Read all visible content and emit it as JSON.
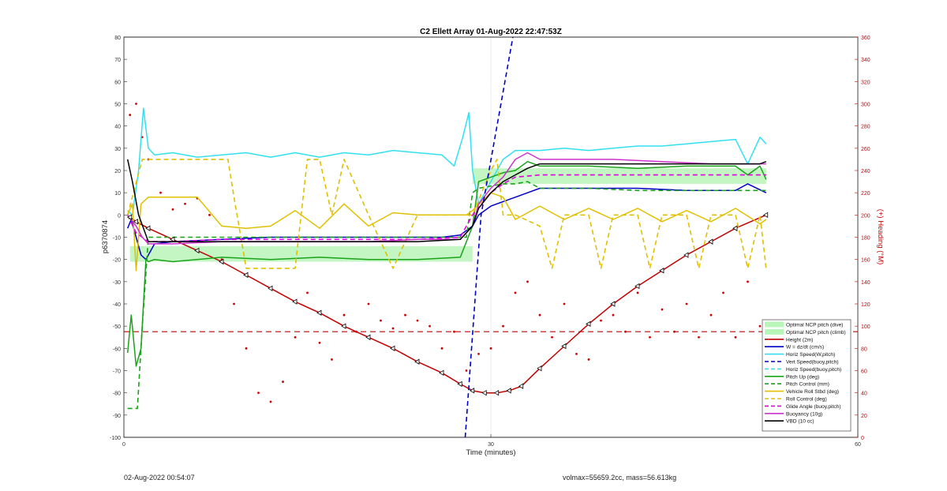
{
  "footer": {
    "timestamp": "02-Aug-2022 00:54:07",
    "volmax": "volmax=55659.2cc, mass=56.613kg"
  },
  "colors": {
    "height": "#c00000",
    "w": "#0000c8",
    "horiz": "#33e0f0",
    "pitch": "#19a319",
    "roll": "#e0c000",
    "glide": "#e000e0",
    "buoyancy": "#cc33cc",
    "vbd": "#000000",
    "band": "#b8f5b8",
    "heading": "#cc0000"
  },
  "chart_data": {
    "type": "line",
    "title": "C2 Ellett Array 01-Aug-2022 22:47:53Z",
    "xlabel": "Time (minutes)",
    "ylabel": "p6370874",
    "y2label": "(+) Heading (°M)",
    "xlim": [
      0,
      60
    ],
    "ylim": [
      -100,
      80
    ],
    "y2lim": [
      0,
      360
    ],
    "xticks": [
      0,
      30,
      60
    ],
    "yticks": [
      -100,
      -90,
      -80,
      -70,
      -60,
      -50,
      -40,
      -30,
      -20,
      -10,
      0,
      10,
      20,
      30,
      40,
      50,
      60,
      70,
      80
    ],
    "y2ticks": [
      0,
      20,
      40,
      60,
      80,
      100,
      120,
      140,
      160,
      180,
      200,
      220,
      240,
      260,
      280,
      300,
      320,
      340,
      360
    ],
    "grid": true,
    "legend_position": "bottom-right",
    "heading_reference": 95,
    "bands": [
      {
        "name": "Optimal NCP pitch (dive)",
        "x": [
          0.5,
          28.5
        ],
        "y": [
          -21,
          -14
        ]
      },
      {
        "name": "Optimal NCP pitch (climb)",
        "x": [
          28.5,
          52.5
        ],
        "y": [
          14,
          21
        ]
      }
    ],
    "series": [
      {
        "name": "Height (2m)",
        "key": "height",
        "style": "solid",
        "markers": true,
        "x": [
          0.5,
          1,
          2,
          4,
          6,
          8,
          10,
          12,
          14,
          16,
          18,
          20,
          22,
          24,
          26,
          27.5,
          28.5,
          29.5,
          30.5,
          31.5,
          32.5,
          34,
          36,
          38,
          40,
          42,
          44,
          46,
          48,
          50,
          52.5
        ],
        "y": [
          -1,
          -3,
          -6,
          -11,
          -16,
          -21,
          -27,
          -33,
          -39,
          -44,
          -50,
          -55,
          -60,
          -66,
          -71,
          -76,
          -79,
          -80,
          -80,
          -79,
          -77,
          -69,
          -59,
          -49,
          -40,
          -32,
          -25,
          -18,
          -12,
          -6,
          0
        ]
      },
      {
        "name": "W = dz/dt (cm/s)",
        "key": "w",
        "style": "solid",
        "x": [
          0.3,
          0.6,
          1,
          1.4,
          1.8,
          2.5,
          4,
          8,
          12,
          16,
          20,
          24,
          26,
          27.5,
          28.5,
          29,
          30,
          31,
          32,
          33,
          34,
          38,
          42,
          46,
          50,
          51,
          52.5
        ],
        "y": [
          -6,
          -2,
          -10,
          -18,
          -20,
          -13,
          -12,
          -11,
          -10,
          -10,
          -10,
          -10,
          -10,
          -9,
          -5,
          0,
          4,
          6,
          8,
          10,
          12,
          12,
          12,
          11,
          11,
          14,
          10
        ]
      },
      {
        "name": "Horiz Speed(W,pitch)",
        "key": "horiz",
        "style": "solid",
        "x": [
          0.3,
          0.7,
          1.2,
          1.6,
          2,
          2.5,
          4,
          6,
          8,
          10,
          12,
          14,
          16,
          18,
          20,
          22,
          24,
          26,
          27,
          27.7,
          28.2,
          28.5,
          29,
          30,
          31,
          32,
          34,
          36,
          38,
          40,
          42,
          44,
          46,
          48,
          50,
          51,
          52,
          52.5
        ],
        "y": [
          2,
          0,
          20,
          48,
          30,
          27,
          28,
          26,
          27,
          28,
          26,
          28,
          26,
          28,
          27,
          29,
          28,
          27,
          22,
          35,
          46,
          20,
          5,
          15,
          25,
          29,
          29,
          30,
          29,
          30,
          31,
          31,
          32,
          33,
          34,
          23,
          35,
          32
        ]
      },
      {
        "name": "Pitch Up (deg)",
        "key": "pitch",
        "style": "solid",
        "x": [
          0.3,
          0.6,
          1,
          1.4,
          1.8,
          2,
          2.5,
          4,
          8,
          12,
          16,
          20,
          24,
          27.5,
          28.5,
          29,
          30,
          31,
          32,
          33,
          34,
          38,
          42,
          46,
          50,
          51,
          52,
          52.5
        ],
        "y": [
          -62,
          -45,
          -68,
          -60,
          -20,
          -21,
          -20,
          -21,
          -19,
          -20,
          -19,
          -20,
          -20,
          -19,
          -5,
          15,
          17,
          19,
          20,
          24,
          22,
          22,
          21,
          22,
          22,
          18,
          22,
          16
        ]
      },
      {
        "name": "Pitch Control (mm)",
        "key": "pitch",
        "style": "dashed",
        "x": [
          0.3,
          1.1,
          1.5,
          2,
          2.5,
          4,
          8,
          12,
          16,
          20,
          24,
          28,
          28.5,
          29,
          30,
          31,
          32,
          33,
          34,
          38,
          42,
          46,
          50,
          52.5
        ],
        "y": [
          -87,
          -87,
          -50,
          -10,
          -10,
          -10,
          -10,
          -10,
          -10,
          -10,
          -10,
          -10,
          10,
          12,
          13,
          14,
          14,
          15,
          12,
          12,
          11,
          11,
          11,
          11
        ]
      },
      {
        "name": "Vehicle Roll Stbd (deg)",
        "key": "roll",
        "style": "solid",
        "x": [
          0.3,
          0.7,
          1,
          1.4,
          2,
          2.5,
          4,
          6,
          8,
          10,
          12,
          14,
          16,
          18,
          20,
          22,
          24,
          26,
          28,
          28.5,
          30,
          31,
          32,
          34,
          36,
          38,
          40,
          42,
          44,
          46,
          48,
          50,
          52,
          52.5
        ],
        "y": [
          0,
          5,
          -25,
          5,
          8,
          8,
          8,
          8,
          -5,
          -6,
          -5,
          2,
          -6,
          5,
          -5,
          1,
          0,
          0,
          0,
          2,
          10,
          8,
          -2,
          4,
          -2,
          3,
          -2,
          3,
          -3,
          2,
          -3,
          3,
          -4,
          -2
        ]
      },
      {
        "name": "Roll Control (deg)",
        "key": "roll",
        "style": "dashed",
        "x": [
          0.3,
          1.5,
          2,
          4,
          6,
          8.5,
          9,
          10,
          12,
          14,
          15,
          16,
          17,
          18,
          20,
          22,
          24,
          26,
          28,
          28.5,
          30,
          30.5,
          31,
          32,
          34,
          35,
          36,
          38,
          39,
          40,
          42,
          43,
          44,
          46,
          47,
          48,
          50,
          51,
          52,
          52.5
        ],
        "y": [
          0,
          25,
          25,
          25,
          25,
          25,
          8,
          -24,
          -24,
          -24,
          25,
          25,
          0,
          25,
          0,
          -24,
          0,
          0,
          0,
          0,
          20,
          25,
          0,
          0,
          -5,
          -24,
          0,
          0,
          -24,
          0,
          0,
          -24,
          0,
          0,
          -24,
          0,
          0,
          -24,
          0,
          -24
        ]
      },
      {
        "name": "Glide Angle (buoy,pitch)",
        "key": "glide",
        "style": "dashed",
        "x": [
          0.3,
          1,
          2,
          4,
          8,
          12,
          16,
          20,
          24,
          27.5,
          28.5,
          30,
          31,
          32,
          34,
          38,
          42,
          46,
          50,
          52.5
        ],
        "y": [
          0,
          -8,
          -12,
          -12,
          -11,
          -11,
          -11,
          -11,
          -11,
          -10,
          0,
          10,
          14,
          17,
          18,
          18,
          18,
          18,
          18,
          18
        ]
      },
      {
        "name": "Buoyancy (10g)",
        "key": "buoyancy",
        "style": "solid",
        "x": [
          0.3,
          1,
          1.5,
          2,
          4,
          8,
          12,
          16,
          20,
          24,
          27.5,
          28.5,
          29,
          30,
          31,
          32,
          33,
          34,
          36,
          40,
          44,
          48,
          52.5
        ],
        "y": [
          0,
          -5,
          -10,
          -13,
          -13,
          -12,
          -12,
          -12,
          -12,
          -11,
          -11,
          -5,
          5,
          12,
          17,
          25,
          28,
          25,
          25,
          25,
          24,
          23,
          23
        ]
      },
      {
        "name": "VBD (10 cc)",
        "key": "vbd",
        "style": "solid",
        "x": [
          0.3,
          0.7,
          1.2,
          2,
          4,
          8,
          12,
          16,
          20,
          24,
          27.5,
          28.5,
          29,
          30,
          31,
          32,
          33,
          34,
          36,
          40,
          44,
          48,
          52,
          52.5
        ],
        "y": [
          25,
          15,
          0,
          -12,
          -12,
          -12,
          -12,
          -12,
          -12,
          -12,
          -11,
          -5,
          3,
          10,
          15,
          18,
          21,
          23,
          23,
          23,
          23,
          23,
          23,
          24
        ]
      },
      {
        "name": "Vert Speed(buoy,pitch)",
        "key": "w",
        "style": "dashed",
        "x": [
          27.9,
          29.2,
          31.8
        ],
        "y": [
          -100,
          0,
          80
        ]
      },
      {
        "name": "Horiz Speed(buoy,pitch)",
        "key": "horiz",
        "style": "dashed",
        "x": [],
        "y": []
      }
    ],
    "heading_points": {
      "x": [
        0.5,
        1,
        1.5,
        2,
        3,
        4,
        5,
        6,
        7,
        8,
        9,
        10,
        11,
        12,
        13,
        14,
        15,
        16,
        17,
        18,
        19,
        20,
        21,
        22,
        23,
        24,
        25,
        26,
        27,
        28,
        29,
        30,
        31,
        32,
        33,
        34,
        35,
        36,
        37,
        38,
        39,
        40,
        41,
        42,
        43,
        44,
        45,
        46,
        47,
        48,
        49,
        50,
        51,
        52
      ],
      "y": [
        290,
        300,
        270,
        250,
        220,
        205,
        210,
        215,
        200,
        160,
        120,
        80,
        40,
        32,
        50,
        90,
        130,
        85,
        70,
        110,
        95,
        120,
        105,
        98,
        110,
        105,
        100,
        80,
        95,
        60,
        75,
        80,
        100,
        130,
        140,
        110,
        90,
        120,
        75,
        70,
        105,
        110,
        95,
        130,
        90,
        115,
        95,
        120,
        90,
        110,
        130,
        90,
        140,
        100
      ]
    }
  }
}
